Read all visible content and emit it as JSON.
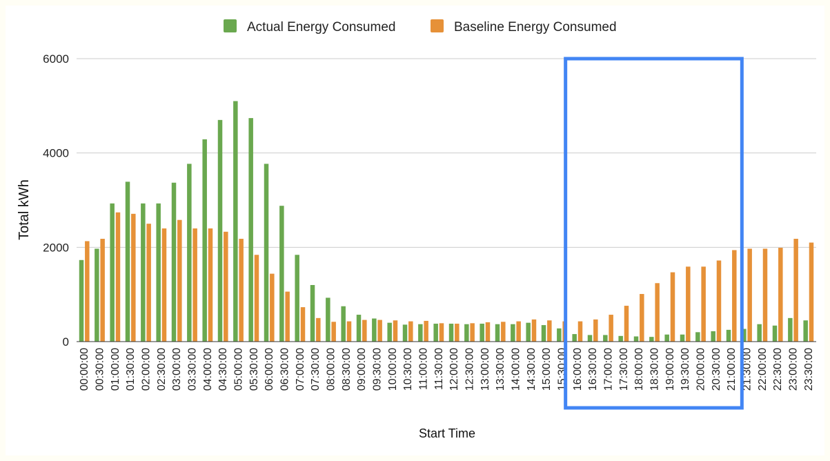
{
  "chart_data": {
    "type": "bar",
    "title": "",
    "xlabel": "Start Time",
    "ylabel": "Total kWh",
    "ylim": [
      0,
      6000
    ],
    "yticks": [
      0,
      2000,
      4000,
      6000
    ],
    "grid": true,
    "legend_position": "top-center",
    "categories": [
      "00:00:00",
      "00:30:00",
      "01:00:00",
      "01:30:00",
      "02:00:00",
      "02:30:00",
      "03:00:00",
      "03:30:00",
      "04:00:00",
      "04:30:00",
      "05:00:00",
      "05:30:00",
      "06:00:00",
      "06:30:00",
      "07:00:00",
      "07:30:00",
      "08:00:00",
      "08:30:00",
      "09:00:00",
      "09:30:00",
      "10:00:00",
      "10:30:00",
      "11:00:00",
      "11:30:00",
      "12:00:00",
      "12:30:00",
      "13:00:00",
      "13:30:00",
      "14:00:00",
      "14:30:00",
      "15:00:00",
      "15:30:00",
      "16:00:00",
      "16:30:00",
      "17:00:00",
      "17:30:00",
      "18:00:00",
      "18:30:00",
      "19:00:00",
      "19:30:00",
      "20:00:00",
      "20:30:00",
      "21:00:00",
      "21:30:00",
      "22:00:00",
      "22:30:00",
      "23:00:00",
      "23:30:00"
    ],
    "series": [
      {
        "name": "Actual Energy Consumed",
        "color": "#6aa84f",
        "values": [
          1730,
          1970,
          2930,
          3390,
          2930,
          2930,
          3370,
          3770,
          4290,
          4700,
          5100,
          4740,
          3770,
          2880,
          1840,
          1200,
          930,
          750,
          570,
          490,
          400,
          360,
          370,
          380,
          380,
          370,
          380,
          370,
          370,
          400,
          350,
          280,
          160,
          140,
          140,
          120,
          110,
          100,
          150,
          150,
          200,
          220,
          250,
          270,
          370,
          340,
          500,
          450
        ]
      },
      {
        "name": "Baseline Energy Consumed",
        "color": "#e69138",
        "values": [
          2130,
          2180,
          2740,
          2710,
          2500,
          2400,
          2580,
          2400,
          2400,
          2330,
          2180,
          1840,
          1440,
          1060,
          730,
          500,
          420,
          430,
          460,
          460,
          450,
          430,
          440,
          390,
          380,
          390,
          410,
          420,
          430,
          470,
          450,
          430,
          430,
          470,
          570,
          760,
          1010,
          1240,
          1470,
          1590,
          1590,
          1720,
          1940,
          1970,
          1970,
          1990,
          2180,
          2100
        ]
      }
    ],
    "annotation": {
      "type": "highlight-box",
      "color": "#4285f4",
      "from_category": "16:00:00",
      "to_category": "21:00:00"
    }
  }
}
